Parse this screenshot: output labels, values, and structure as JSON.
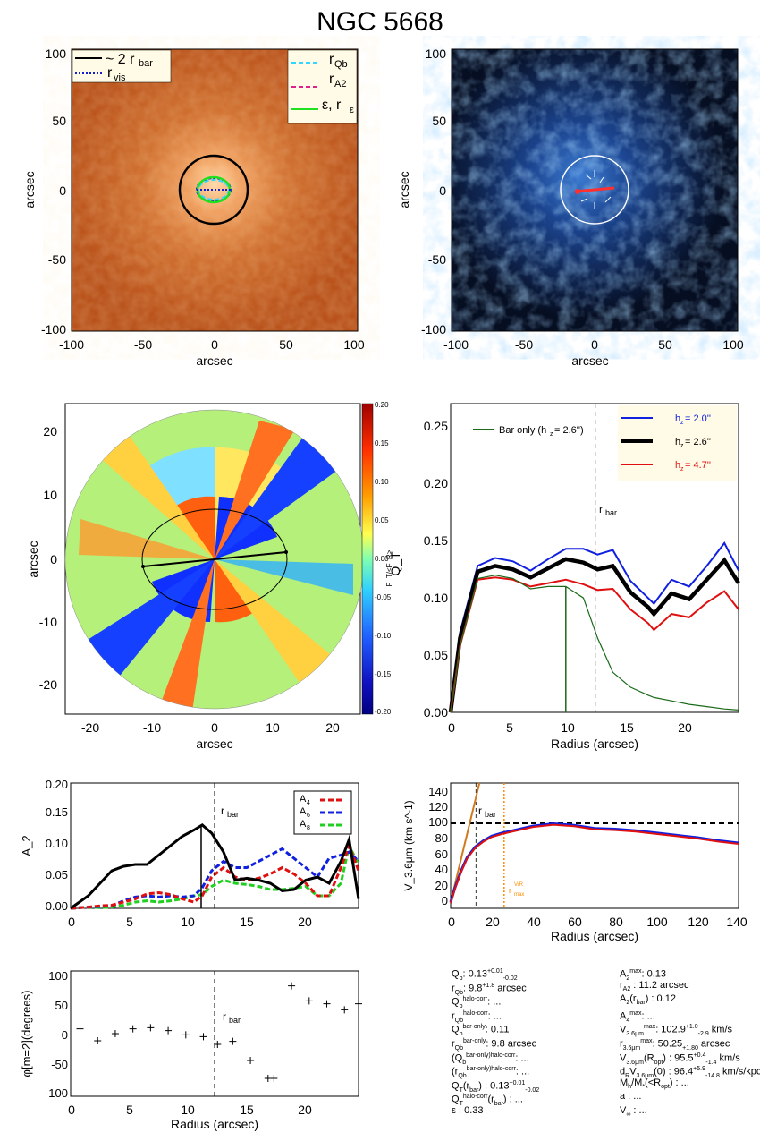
{
  "page": {
    "title": "NGC 5668"
  },
  "colors": {
    "orange_image": "#b9521b",
    "blue_image": "#0a1a35",
    "hz_small": "#1020e0",
    "hz_mid": "#000000",
    "hz_large": "#e01010",
    "bar_only": "#1a6a1a",
    "a4": "#e01010",
    "a6": "#1020e0",
    "a8": "#20d020",
    "rvis": "#1020d0",
    "rqb": "#30d8ff",
    "ra2": "#e0208a",
    "eps": "#20e020",
    "rmax": "#ff8c00"
  },
  "icons": {
    "image_overlay": "ellipse-icon"
  },
  "panel1": {
    "xlabel": "arcsec",
    "ylabel": "arcsec",
    "ticks": [
      "-100",
      "-50",
      "0",
      "50",
      "100"
    ],
    "legend_left": {
      "l1_main": "~ 2 r",
      "l1_sub": "bar",
      "l2_main": "r",
      "l2_sub": "vis"
    },
    "legend_right": {
      "l1_main": "r",
      "l1_sub": "Qb",
      "l2_main": "r",
      "l2_sub": "A2",
      "l3_main": "ε, r",
      "l3_sub": "ε"
    }
  },
  "panel2": {
    "xlabel": "arcsec",
    "ylabel": "arcsec",
    "ticks": [
      "-100",
      "-50",
      "0",
      "50",
      "100"
    ]
  },
  "panel3": {
    "xlabel": "arcsec",
    "ylabel": "arcsec",
    "ticks": [
      "-20",
      "-10",
      "0",
      "10",
      "20"
    ],
    "colorbar_ticks": [
      "0.20",
      "0.15",
      "0.10",
      "0.05",
      "0.00",
      "-0.05",
      "-0.10",
      "-0.15",
      "-0.20"
    ],
    "colorbar_label": "F_T/<F_R>"
  },
  "panel4": {
    "xlabel": "Radius (arcsec)",
    "ylabel": "Q_T",
    "yticks": [
      "0.00",
      "0.05",
      "0.10",
      "0.15",
      "0.20",
      "0.25"
    ],
    "xticks": [
      "0",
      "5",
      "10",
      "15",
      "20"
    ],
    "bar_only_label": "Bar only (h",
    "bar_only_sub": "z",
    "bar_only_val": "=   2.6'')",
    "legend": [
      {
        "label": "h",
        "sub": "z",
        "val": "=   2.0''"
      },
      {
        "label": "h",
        "sub": "z",
        "val": "=   2.6''"
      },
      {
        "label": "h",
        "sub": "z",
        "val": "=   4.7''"
      }
    ],
    "rbar_main": "r",
    "rbar_sub": "bar"
  },
  "panel5": {
    "ylabel": "A_2",
    "yticks": [
      "0.00",
      "0.05",
      "0.10",
      "0.15",
      "0.20"
    ],
    "xticks": [
      "0",
      "5",
      "10",
      "15",
      "20"
    ],
    "rbar_main": "r",
    "rbar_sub": "bar",
    "legend": [
      {
        "main": "A",
        "sub": "4"
      },
      {
        "main": "A",
        "sub": "6"
      },
      {
        "main": "A",
        "sub": "8"
      }
    ]
  },
  "panel6": {
    "xlabel": "Radius (arcsec)",
    "ylabel": "V_3.6μm (km s^-1)",
    "yticks": [
      "0",
      "20",
      "40",
      "60",
      "80",
      "100",
      "120",
      "140"
    ],
    "xticks": [
      "0",
      "20",
      "40",
      "60",
      "80",
      "100",
      "120",
      "140"
    ],
    "rbar_main": "r",
    "rbar_sub": "bar",
    "rmax_main": "r",
    "rmax_sup": "V/R",
    "rmax_sub": "max"
  },
  "panel7": {
    "xlabel": "Radius (arcsec)",
    "ylabel": "φ[m=2](degrees)",
    "yticks": [
      "-100",
      "-50",
      "0",
      "50",
      "100"
    ],
    "xticks": [
      "0",
      "5",
      "10",
      "15",
      "20"
    ],
    "rbar_main": "r",
    "rbar_sub": "bar"
  },
  "info": {
    "left": [
      {
        "key": "Q",
        "sub": "b",
        "val": ":  0.13",
        "sup2": "+0.01",
        "sub2": "-0.02",
        "rest": ""
      },
      {
        "key": "r",
        "sub": "Qb",
        "val": ":   9.8",
        "sup2": "+1.8",
        "sub2": "",
        "rest": "arcsec"
      },
      {
        "key": "Q",
        "sub": "b",
        "sup": "halo-corr",
        "val": ":  ..."
      },
      {
        "key": "r",
        "sub": "Qb",
        "sup": "halo-corr",
        "val": ":  ..."
      },
      {
        "key": "Q",
        "sub": "b",
        "sup": "bar-only",
        "val": ":   0.11"
      },
      {
        "key": "r",
        "sub": "Qb",
        "sup": "bar-only",
        "val": ":   9.8 arcsec"
      },
      {
        "key": "(Q",
        "sub": "b",
        "sup": "bar-only)halo-corr",
        "val": ":  ..."
      },
      {
        "key": "(r",
        "sub": "Qb",
        "sup": "bar-only)halo-corr",
        "val": ":  ..."
      },
      {
        "key": "Q",
        "sub": "T",
        "val": "(r",
        "sub3": "bar",
        "rest": ") :  0.13",
        "sup2": "+0.01",
        "sub2": "-0.02"
      },
      {
        "key": "Q",
        "sub": "T",
        "sup": "halo-corr",
        "val": "(r",
        "sub3": "bar",
        "rest": ") :  ..."
      },
      {
        "key": "ε",
        "val": " :   0.33"
      }
    ],
    "right": [
      {
        "key": "A",
        "sub": "2",
        "sup": "max",
        "val": ":   0.13"
      },
      {
        "key": "r",
        "sub": "A2",
        "val": " :   11.2 arcsec"
      },
      {
        "key": "A",
        "sub": "2",
        "val": "(r",
        "sub3": "bar",
        "rest": ") :   0.12"
      },
      {
        "key": "A",
        "sub": "4",
        "sup": "max",
        "val": ":  ..."
      },
      {
        "key": "V",
        "sub": "3.6μm",
        "sup": "max",
        "val": ":   102.9",
        "sup2": "+1.0",
        "sub2": "-2.9",
        "rest": "km/s"
      },
      {
        "key": "r",
        "sub": "3.6μm",
        "sup": "max",
        "val": ":   50.25",
        "sup2": "",
        "sub2": "+1.80",
        "rest": "arcsec"
      },
      {
        "key": "V",
        "sub": "3.6μm",
        "val": "(R",
        "sub3": "opt",
        "rest": ") :   95.5",
        "sup2": "+0.4",
        "sub2": "-1.4",
        "rest2": "km/s"
      },
      {
        "key": "d",
        "sub": "R",
        "val": "V",
        "sub3": "3.6μm",
        "rest": "(0) :   96.4",
        "sup2": "+5.9",
        "sub2": "-14.8",
        "rest2": "km/s/kpc"
      },
      {
        "key": "M",
        "sub": "h",
        "val": "/M",
        "sub3": "*",
        "rest": "(<R",
        "rest3": "opt",
        "rest4": ") :  ..."
      },
      {
        "key": "a",
        "val": " :  ..."
      },
      {
        "key": "V",
        "sub": "∞",
        "val": " :  ..."
      }
    ]
  },
  "chart_data": [
    {
      "type": "line",
      "title": "NGC 5668",
      "xlabel": "Radius (arcsec)",
      "ylabel": "Q_T",
      "xlim": [
        0,
        24.5
      ],
      "ylim": [
        0,
        0.27
      ],
      "x": [
        0,
        0.8,
        2.3,
        3.8,
        5.3,
        6.8,
        8.3,
        9.8,
        11.3,
        12.5,
        13.8,
        15.3,
        16.8,
        17.3,
        18.8,
        20.3,
        21.8,
        23.3,
        24.5
      ],
      "series": [
        {
          "name": "h_z = 2.0''",
          "values": [
            0,
            0.07,
            0.128,
            0.135,
            0.132,
            0.124,
            0.134,
            0.143,
            0.143,
            0.138,
            0.142,
            0.115,
            0.1,
            0.095,
            0.116,
            0.11,
            0.128,
            0.148,
            0.124
          ]
        },
        {
          "name": "h_z = 2.6''",
          "values": [
            0,
            0.065,
            0.123,
            0.128,
            0.125,
            0.118,
            0.126,
            0.134,
            0.131,
            0.125,
            0.128,
            0.105,
            0.092,
            0.086,
            0.104,
            0.099,
            0.116,
            0.133,
            0.113
          ]
        },
        {
          "name": "h_z = 4.7''",
          "values": [
            0,
            0.058,
            0.116,
            0.118,
            0.116,
            0.11,
            0.113,
            0.116,
            0.112,
            0.107,
            0.108,
            0.09,
            0.078,
            0.072,
            0.086,
            0.083,
            0.096,
            0.106,
            0.09
          ]
        },
        {
          "name": "Bar only (h_z = 2.6'')",
          "values": [
            0,
            0.058,
            0.117,
            0.12,
            0.117,
            0.108,
            0.11,
            0.11,
            0.1,
            0.065,
            0.035,
            0.022,
            0.015,
            0.013,
            0.01,
            0.007,
            0.005,
            0.003,
            0.002
          ]
        }
      ],
      "annotations": {
        "rbar": 12.3,
        "bar_only_peak_r": 9.8
      }
    },
    {
      "type": "line",
      "ylabel": "A_2",
      "xlim": [
        0,
        24.5
      ],
      "ylim": [
        0,
        0.2
      ],
      "x": [
        0,
        1.5,
        2.5,
        3.5,
        4.5,
        5.5,
        6.5,
        7.5,
        8.5,
        9.5,
        10.5,
        11.2,
        12,
        13,
        14,
        15,
        16,
        17,
        18,
        19,
        20,
        21,
        22,
        23,
        23.7,
        24.5
      ],
      "series": [
        {
          "name": "A2",
          "values": [
            0,
            0.02,
            0.04,
            0.06,
            0.067,
            0.07,
            0.07,
            0.085,
            0.1,
            0.115,
            0.125,
            0.133,
            0.12,
            0.09,
            0.045,
            0.048,
            0.045,
            0.04,
            0.028,
            0.03,
            0.045,
            0.05,
            0.04,
            0.075,
            0.11,
            0.015
          ]
        },
        {
          "name": "A4",
          "values": [
            0,
            0.002,
            0.004,
            0.005,
            0.01,
            0.015,
            0.023,
            0.025,
            0.022,
            0.015,
            0.01,
            0.02,
            0.05,
            0.065,
            0.05,
            0.045,
            0.048,
            0.055,
            0.065,
            0.055,
            0.04,
            0.02,
            0.02,
            0.065,
            0.1,
            0.06
          ]
        },
        {
          "name": "A6",
          "values": [
            0,
            0.002,
            0.003,
            0.004,
            0.012,
            0.018,
            0.02,
            0.018,
            0.02,
            0.018,
            0.02,
            0.033,
            0.06,
            0.075,
            0.065,
            0.065,
            0.075,
            0.085,
            0.095,
            0.08,
            0.065,
            0.05,
            0.08,
            0.085,
            0.09,
            0.075
          ]
        },
        {
          "name": "A8",
          "values": [
            0,
            0.002,
            0.001,
            0.002,
            0.005,
            0.01,
            0.012,
            0.01,
            0.012,
            0.015,
            0.02,
            0.022,
            0.035,
            0.045,
            0.04,
            0.038,
            0.035,
            0.03,
            0.03,
            0.032,
            0.035,
            0.02,
            0.02,
            0.04,
            0.1,
            0.07
          ]
        }
      ],
      "annotations": {
        "rbar": 12.3,
        "rA2": 11.2
      }
    },
    {
      "type": "line",
      "xlabel": "Radius (arcsec)",
      "ylabel": "V_3.6μm (km s^-1)",
      "xlim": [
        0,
        140
      ],
      "ylim": [
        -8,
        155
      ],
      "x": [
        0,
        2,
        5,
        8,
        12,
        16,
        20,
        25,
        30,
        40,
        50,
        60,
        70,
        80,
        90,
        100,
        110,
        120,
        130,
        140
      ],
      "series": [
        {
          "name": "V_3.6μm",
          "values": [
            0,
            18,
            40,
            58,
            72,
            80,
            86,
            90,
            93,
            99,
            102,
            100,
            96,
            95,
            93,
            90,
            87,
            84,
            80,
            77
          ]
        }
      ],
      "annotations": {
        "vmax": 102.9,
        "rbar": 12.3,
        "rmax_VR": 26
      }
    },
    {
      "type": "scatter",
      "xlabel": "Radius (arcsec)",
      "ylabel": "φ[m=2](degrees)",
      "xlim": [
        0,
        24.5
      ],
      "ylim": [
        -105,
        105
      ],
      "x": [
        0.8,
        2.3,
        3.8,
        5.3,
        6.8,
        8.3,
        9.8,
        11.3,
        12.5,
        13.8,
        15.3,
        16.8,
        17.3,
        18.8,
        20.3,
        21.8,
        23.3,
        24.5
      ],
      "values": [
        8,
        -12,
        0,
        8,
        10,
        5,
        -2,
        -5,
        -18,
        -13,
        -45,
        -75,
        -75,
        80,
        55,
        50,
        40,
        50
      ],
      "annotations": {
        "rbar": 12.3
      }
    }
  ]
}
